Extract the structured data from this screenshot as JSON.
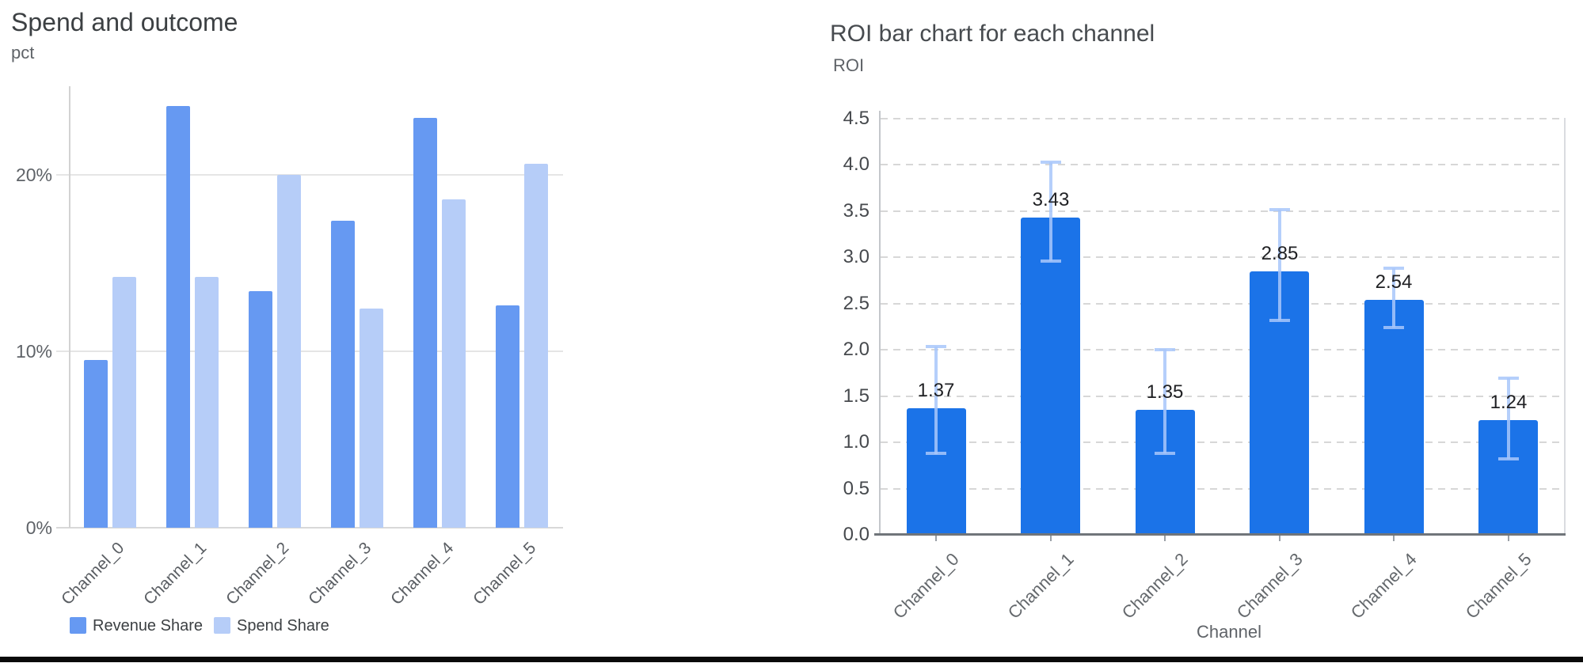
{
  "colors": {
    "left_revenue": "#6699f2",
    "left_spend": "#b6cdf8",
    "left_grid": "#e5e5e5",
    "left_baseline": "#d8d8d8",
    "left_axis": "#d2d2d2",
    "left_tick_text": "#5f6368",
    "left_xlabel_text": "#5a5e63",
    "left_title_text": "#3c4043",
    "legend_text": "#3c4043",
    "right_bar": "#1b73e8",
    "right_error": "rgba(168,199,250,0.85)",
    "right_grid": "#d7d7d7",
    "right_axis_left": "#c4c7cb",
    "right_axis_bottom": "#70757a",
    "right_border_right": "#dadce0",
    "right_tick_text": "#46494d",
    "right_value_text": "#202124",
    "right_xlabel_text": "#64686c",
    "right_title_text": "#474b4f",
    "axis_unit_text": "#5f6368",
    "x_tick_mark": "#9aa0a6",
    "bottom_rule": "#0a0a0a"
  },
  "chart_data": [
    {
      "type": "bar",
      "title": "Spend and outcome",
      "ylabel": "pct",
      "xlabel": "",
      "categories": [
        "Channel_0",
        "Channel_1",
        "Channel_2",
        "Channel_3",
        "Channel_4",
        "Channel_5"
      ],
      "series": [
        {
          "name": "Revenue Share",
          "values": [
            9.5,
            23.9,
            13.4,
            17.4,
            23.2,
            12.6
          ]
        },
        {
          "name": "Spend Share",
          "values": [
            14.2,
            14.2,
            20.0,
            12.4,
            18.6,
            20.6
          ]
        }
      ],
      "y_ticks": [
        {
          "v": 0,
          "label": "0%"
        },
        {
          "v": 10,
          "label": "10%"
        },
        {
          "v": 20,
          "label": "20%"
        }
      ],
      "ylim": [
        0,
        25
      ],
      "unit": "percent",
      "grid": "horizontal-solid",
      "legend_position": "bottom-left",
      "legend": [
        "Revenue Share",
        "Spend Share"
      ]
    },
    {
      "type": "bar",
      "title": "ROI bar chart for each channel",
      "ylabel": "ROI",
      "xlabel": "Channel",
      "categories": [
        "Channel_0",
        "Channel_1",
        "Channel_2",
        "Channel_3",
        "Channel_4",
        "Channel_5"
      ],
      "values": [
        1.37,
        3.43,
        1.35,
        2.85,
        2.54,
        1.24
      ],
      "bar_labels": [
        "1.37",
        "3.43",
        "1.35",
        "2.85",
        "2.54",
        "1.24"
      ],
      "error_bars": {
        "upper": [
          2.04,
          4.03,
          2.0,
          3.52,
          2.88,
          1.69
        ],
        "lower": [
          0.88,
          2.96,
          0.88,
          2.32,
          2.24,
          0.82
        ]
      },
      "y_ticks": [
        {
          "v": 0.0,
          "label": "0.0"
        },
        {
          "v": 0.5,
          "label": "0.5"
        },
        {
          "v": 1.0,
          "label": "1.0"
        },
        {
          "v": 1.5,
          "label": "1.5"
        },
        {
          "v": 2.0,
          "label": "2.0"
        },
        {
          "v": 2.5,
          "label": "2.5"
        },
        {
          "v": 3.0,
          "label": "3.0"
        },
        {
          "v": 3.5,
          "label": "3.5"
        },
        {
          "v": 4.0,
          "label": "4.0"
        },
        {
          "v": 4.5,
          "label": "4.5"
        }
      ],
      "ylim": [
        0,
        4.6
      ],
      "grid": "horizontal-dashed",
      "legend_position": "none"
    }
  ]
}
